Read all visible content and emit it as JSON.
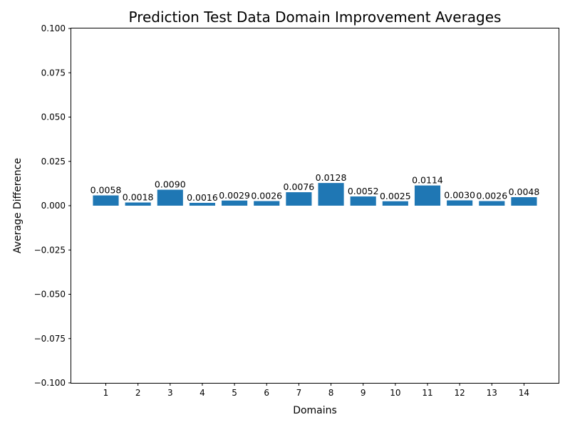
{
  "chart_data": {
    "type": "bar",
    "title": "Prediction Test Data Domain Improvement Averages",
    "xlabel": "Domains",
    "ylabel": "Average Difference",
    "categories": [
      "1",
      "2",
      "3",
      "4",
      "5",
      "6",
      "7",
      "8",
      "9",
      "10",
      "11",
      "12",
      "13",
      "14"
    ],
    "values": [
      0.0058,
      0.0018,
      0.009,
      0.0016,
      0.0029,
      0.0026,
      0.0076,
      0.0128,
      0.0052,
      0.0025,
      0.0114,
      0.003,
      0.0026,
      0.0048
    ],
    "value_labels": [
      "0.0058",
      "0.0018",
      "0.0090",
      "0.0016",
      "0.0029",
      "0.0026",
      "0.0076",
      "0.0128",
      "0.0052",
      "0.0025",
      "0.0114",
      "0.0030",
      "0.0026",
      "0.0048"
    ],
    "ylim": [
      -0.1,
      0.1
    ],
    "yticks": [
      0.1,
      0.075,
      0.05,
      0.025,
      0.0,
      -0.025,
      -0.05,
      -0.075,
      -0.1
    ],
    "ytick_labels": [
      "0.100",
      "0.075",
      "0.050",
      "0.025",
      "0.000",
      "−0.025",
      "−0.050",
      "−0.075",
      "−0.100"
    ],
    "grid": false,
    "bar_color": "#1f77b4"
  }
}
